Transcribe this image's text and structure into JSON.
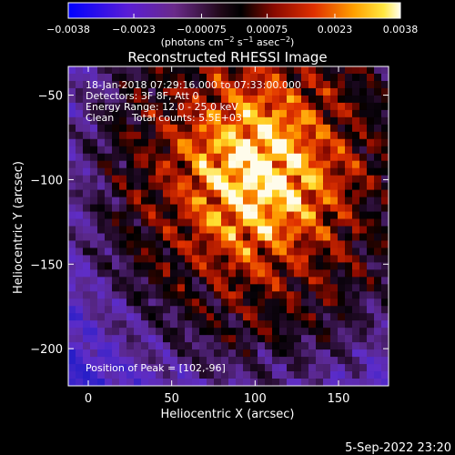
{
  "colorbar": {
    "ticks": [
      {
        "value": -0.0038,
        "label": "−0.0038"
      },
      {
        "value": -0.0023,
        "label": "−0.0023"
      },
      {
        "value": -0.00075,
        "label": "−0.00075"
      },
      {
        "value": 0.00075,
        "label": "0.00075"
      },
      {
        "value": 0.0023,
        "label": "0.0023"
      },
      {
        "value": 0.0038,
        "label": "0.0038"
      }
    ],
    "range": [
      -0.0038,
      0.0038
    ],
    "unit_text": "(photons cm",
    "unit_exp1": "−2",
    "unit_mid": " s",
    "unit_exp2": "−1",
    "unit_mid2": " asec",
    "unit_exp3": "−2",
    "unit_close": ")"
  },
  "chart_data": {
    "type": "heatmap",
    "title": "Reconstructed RHESSI Image",
    "xlabel": "Heliocentric X (arcsec)",
    "ylabel": "Heliocentric Y (arcsec)",
    "xlim": [
      -12,
      180
    ],
    "ylim": [
      -222,
      -33
    ],
    "xticks": [
      0,
      50,
      100,
      150
    ],
    "yticks": [
      -50,
      -100,
      -150,
      -200
    ],
    "colormap": "rhessi-hot (blue-purple-black-red-yellow-white)",
    "annotations": {
      "time": "18-Jan-2018 07:29:16.000 to 07:33:00.000",
      "detectors": "Detectors: 3F 8F, Att 0",
      "energy": "Energy Range: 12.0 - 25.0 keV",
      "method": "Clean",
      "counts": "Total counts: 5.5E+03",
      "peak": "Position of Peak = [102,-96]"
    },
    "peak": [
      102,
      -96
    ],
    "peak_value": 0.0038
  },
  "footer": {
    "timestamp": "5-Sep-2022 23:20"
  }
}
